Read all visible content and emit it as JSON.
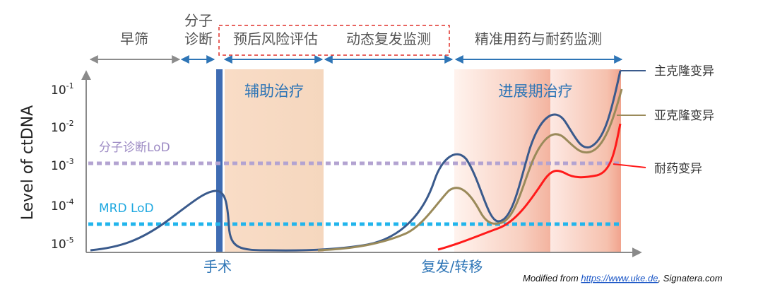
{
  "phases": {
    "screening": "早筛",
    "diagnosis_line1": "分子",
    "diagnosis_line2": "诊断",
    "prognosis": "预后风险评估",
    "monitoring": "动态复发监测",
    "precision": "精准用药与耐药监测"
  },
  "treatments": {
    "adjuvant": "辅助治疗",
    "advanced": "进展期治疗"
  },
  "axis": {
    "y_label": "Level of ctDNA",
    "ticks": [
      {
        "base": "10",
        "exp": "-1"
      },
      {
        "base": "10",
        "exp": "-2"
      },
      {
        "base": "10",
        "exp": "-3"
      },
      {
        "base": "10",
        "exp": "-4"
      },
      {
        "base": "10",
        "exp": "-5"
      }
    ]
  },
  "lod": {
    "molecular": "分子诊断LoD",
    "mrd": "MRD LoD"
  },
  "events": {
    "surgery": "手术",
    "relapse": "复发/转移"
  },
  "legend": {
    "clonal": "主克隆变异",
    "subclonal": "亚克隆变异",
    "resistance": "耐药变异"
  },
  "credit": {
    "prefix": "Modified from ",
    "link": "https://www.uke.de",
    "suffix": ", Signatera.com"
  },
  "colors": {
    "clonal": "#3a5a8c",
    "subclonal": "#9a8a5a",
    "resistance": "#ff1a1a",
    "molecular_lod": "#b3a3d1",
    "mrd_lod": "#22b5ec",
    "phase_text": "#555555",
    "accent_blue": "#2e75b6",
    "dashed_box": "#e0302a"
  }
}
